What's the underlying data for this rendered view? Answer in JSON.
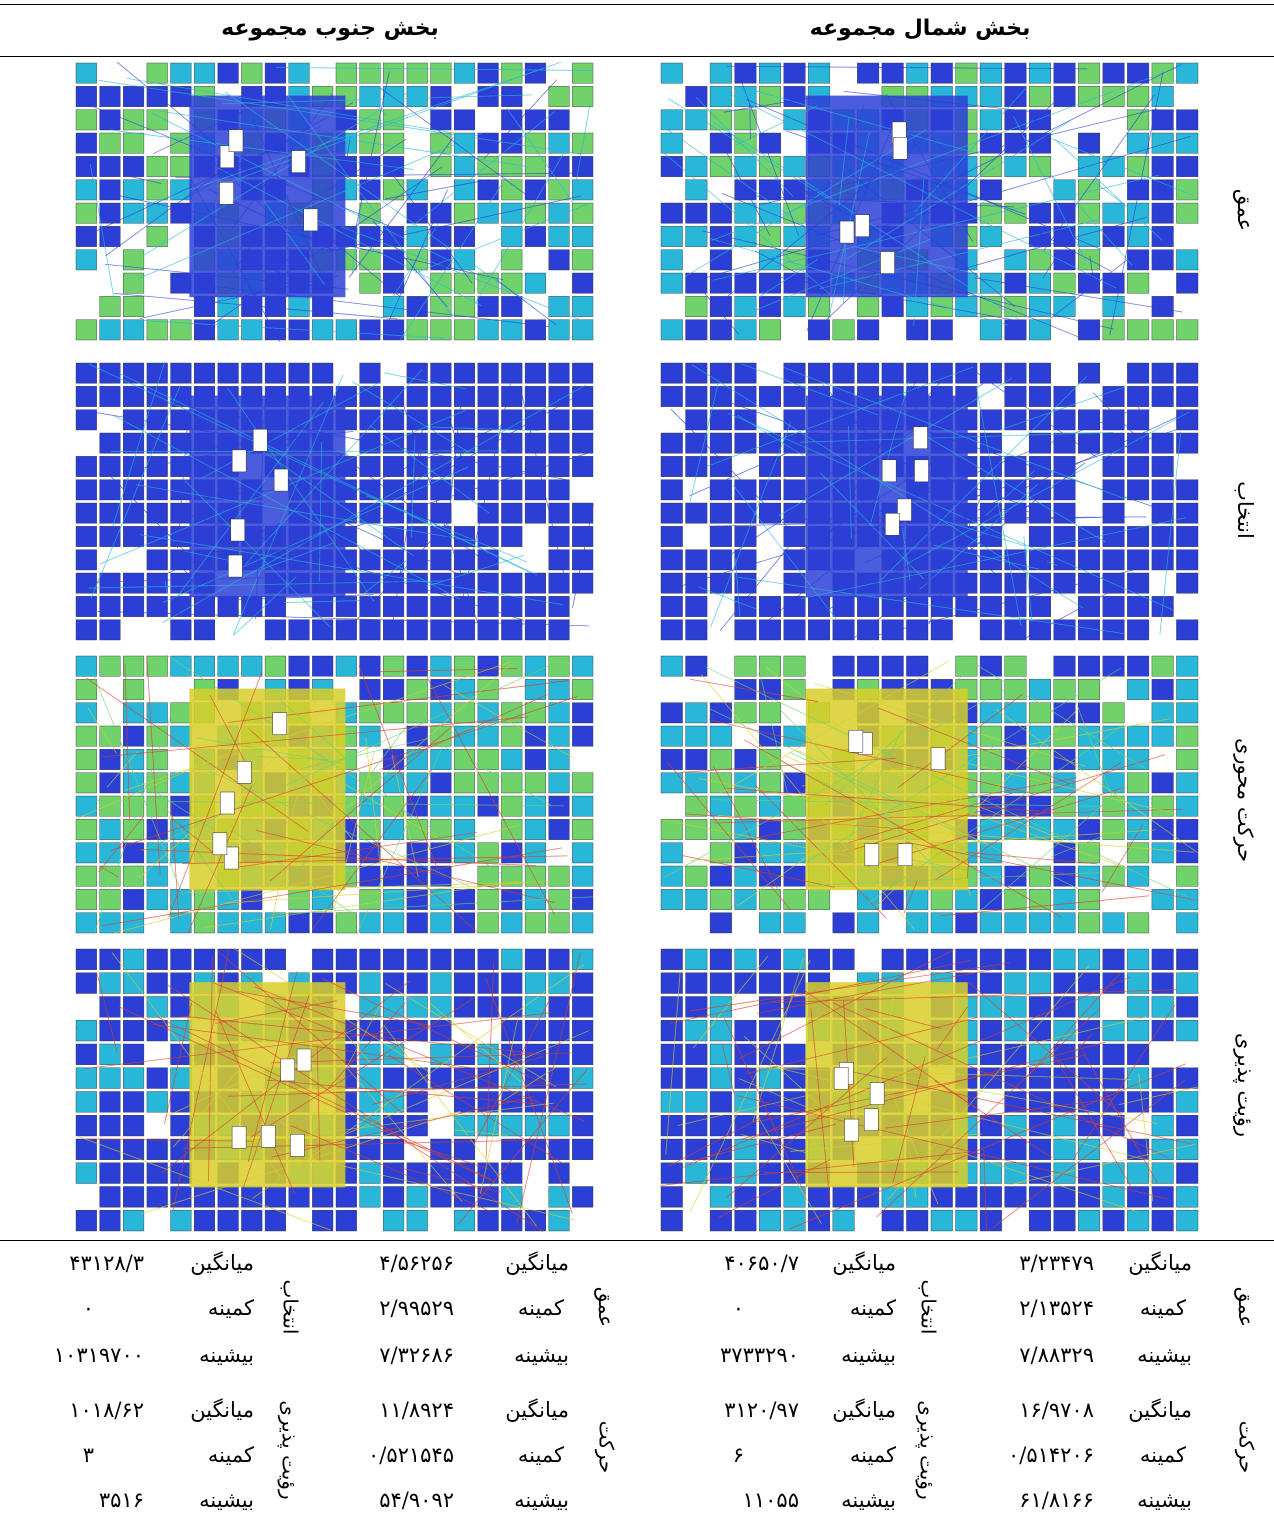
{
  "headers": {
    "north": "بخش شمال مجموعه",
    "south": "بخش جنوب مجموعه"
  },
  "rows": [
    {
      "label": "عمق",
      "palette": "depth"
    },
    {
      "label": "انتخاب",
      "palette": "choice"
    },
    {
      "label": "حرکت محوری",
      "palette": "movement"
    },
    {
      "label": "رؤیت پذیری",
      "palette": "visibility"
    }
  ],
  "colors": {
    "blue": "#2b3fd6",
    "cyan": "#29b7d9",
    "green": "#6fd26b",
    "yellow": "#d8cf28",
    "red": "#e03a2a",
    "outline": "#333333"
  },
  "stats": {
    "north": {
      "depth": {
        "label": "عمق",
        "mean_label": "میانگین",
        "mean": "۳/۲۳۴۷۹",
        "min_label": "کمینه",
        "min": "۲/۱۳۵۲۴",
        "max_label": "بیشینه",
        "max": "۷/۸۸۳۲۹"
      },
      "choice": {
        "label": "انتخاب",
        "mean_label": "میانگین",
        "mean": "۴۰۶۵۰/۷",
        "min_label": "کمینه",
        "min": "۰",
        "max_label": "بیشینه",
        "max": "۳۷۳۳۲۹۰"
      },
      "movement": {
        "label": "حرکت",
        "mean_label": "میانگین",
        "mean": "۱۶/۹۷۰۸",
        "min_label": "کمینه",
        "min": "۰/۵۱۴۲۰۶",
        "max_label": "بیشینه",
        "max": "۶۱/۸۱۶۶"
      },
      "visibility": {
        "label": "رؤیت پذیری",
        "mean_label": "میانگین",
        "mean": "۳۱۲۰/۹۷",
        "min_label": "کمینه",
        "min": "۶",
        "max_label": "بیشینه",
        "max": "۱۱۰۵۵"
      }
    },
    "south": {
      "depth": {
        "label": "عمق",
        "mean_label": "میانگین",
        "mean": "۴/۵۶۲۵۶",
        "min_label": "کمینه",
        "min": "۲/۹۹۵۲۹",
        "max_label": "بیشینه",
        "max": "۷/۳۲۶۸۶"
      },
      "choice": {
        "label": "انتخاب",
        "mean_label": "میانگین",
        "mean": "۴۳۱۲۸/۳",
        "min_label": "کمینه",
        "min": "۰",
        "max_label": "بیشینه",
        "max": "۱۰۳۱۹۷۰۰"
      },
      "movement": {
        "label": "حرکت",
        "mean_label": "میانگین",
        "mean": "۱۱/۸۹۲۴",
        "min_label": "کمینه",
        "min": "۰/۵۲۱۵۴۵",
        "max_label": "بیشینه",
        "max": "۵۴/۹۰۹۲"
      },
      "visibility": {
        "label": "رؤیت پذیری",
        "mean_label": "میانگین",
        "mean": "۱۰۱۸/۶۲",
        "min_label": "کمینه",
        "min": "۳",
        "max_label": "بیشینه",
        "max": "۳۵۱۶"
      }
    }
  }
}
